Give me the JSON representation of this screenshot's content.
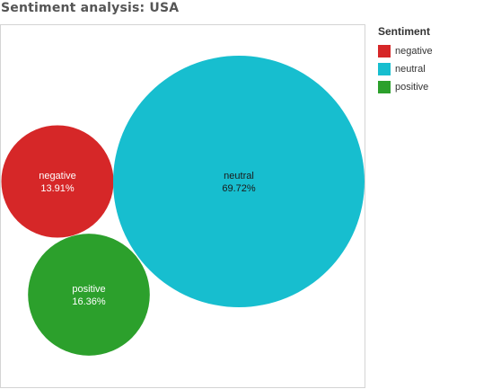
{
  "chart_data": {
    "type": "bubble",
    "title": "Sentiment analysis: USA",
    "legend": {
      "title": "Sentiment",
      "position": "right-top"
    },
    "series": [
      {
        "name": "negative",
        "value": 13.91,
        "label": "13.91%",
        "color": "#d62728"
      },
      {
        "name": "neutral",
        "value": 69.72,
        "label": "69.72%",
        "color": "#17becf"
      },
      {
        "name": "positive",
        "value": 16.36,
        "label": "16.36%",
        "color": "#2ca02c"
      }
    ],
    "grid": false
  }
}
